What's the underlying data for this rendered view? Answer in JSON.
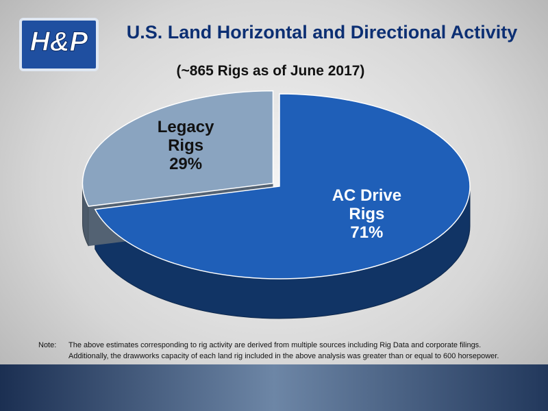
{
  "logo_text": "H&P",
  "chart_data": {
    "type": "pie",
    "title": "U.S. Land Horizontal and Directional Activity",
    "subtitle": "(~865 Rigs as of June 2017)",
    "categories": [
      "Legacy Rigs",
      "AC Drive Rigs"
    ],
    "values": [
      29,
      71
    ],
    "value_labels": [
      "29%",
      "71%"
    ],
    "colors": [
      "#8aa4c0",
      "#1f5fb8"
    ],
    "label_colors": [
      "#111111",
      "#ffffff"
    ]
  },
  "note": {
    "label": "Note:",
    "lines": [
      "The above estimates corresponding to rig activity are derived from multiple sources including Rig Data and corporate filings.",
      "Additionally, the drawworks capacity of each land rig included in the above analysis was greater than or equal to 600 horsepower."
    ]
  }
}
